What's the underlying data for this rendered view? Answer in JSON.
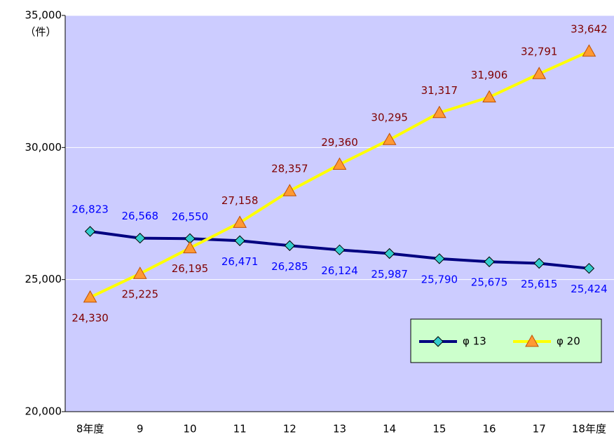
{
  "chart_data": {
    "type": "line",
    "y_label": "（件）",
    "categories": [
      "8年度",
      "9",
      "10",
      "11",
      "12",
      "13",
      "14",
      "15",
      "16",
      "17",
      "18年度"
    ],
    "series": [
      {
        "name": "φ 13",
        "color": "#000080",
        "marker_color": "#33CCCC",
        "label_color": "#0000FF",
        "values": [
          26823,
          26568,
          26550,
          26471,
          26285,
          26124,
          25987,
          25790,
          25675,
          25615,
          25424
        ],
        "value_labels": [
          "26,823",
          "26,568",
          "26,550",
          "26,471",
          "26,285",
          "26,124",
          "25,987",
          "25,790",
          "25,675",
          "25,615",
          "25,424"
        ]
      },
      {
        "name": "φ 20",
        "color": "#FFFF00",
        "marker_color": "#FF9933",
        "label_color": "#800000",
        "values": [
          24330,
          25225,
          26195,
          27158,
          28357,
          29360,
          30295,
          31317,
          31906,
          32791,
          33642
        ],
        "value_labels": [
          "24,330",
          "25,225",
          "26,195",
          "27,158",
          "28,357",
          "29,360",
          "30,295",
          "31,317",
          "31,906",
          "32,791",
          "33,642"
        ]
      }
    ],
    "ylim": [
      20000,
      35000
    ],
    "yticks": [
      {
        "value": 20000,
        "label": "20,000"
      },
      {
        "value": 25000,
        "label": "25,000"
      },
      {
        "value": 30000,
        "label": "30,000"
      },
      {
        "value": 35000,
        "label": "35,000"
      }
    ],
    "grid": true,
    "plot_background": "#CCCCFF",
    "legend_position": "lower right"
  }
}
